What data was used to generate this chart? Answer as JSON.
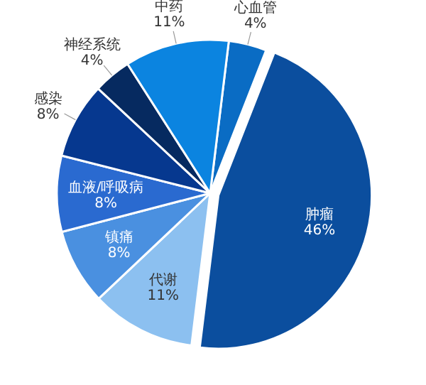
{
  "chart_data": {
    "type": "pie",
    "categories": [
      "心血管",
      "肿瘤",
      "代谢",
      "镇痛",
      "血液/呼吸病",
      "感染",
      "神经系统",
      "中药"
    ],
    "values": [
      4,
      46,
      11,
      8,
      8,
      8,
      4,
      11
    ],
    "value_labels": [
      "4%",
      "46%",
      "11%",
      "8%",
      "8%",
      "8%",
      "4%",
      "11%"
    ],
    "colors": [
      "#0a6cc4",
      "#0b4e9e",
      "#8cc0f0",
      "#4a90e0",
      "#2a6ad0",
      "#06388f",
      "#062a60",
      "#0b84e0"
    ],
    "legend": false
  }
}
